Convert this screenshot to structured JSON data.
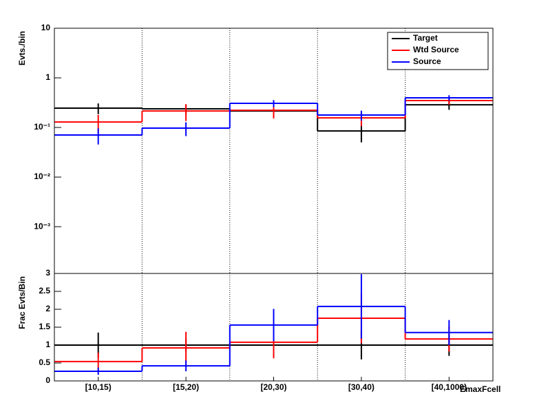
{
  "chart_data": [
    {
      "type": "step",
      "y_label": "Evts./bin",
      "log_y": true,
      "grid_x": true,
      "legend": "top-right",
      "ylim": [
        0.000114,
        10
      ],
      "yticks": [
        {
          "value": 0.001,
          "label": "10⁻³"
        },
        {
          "value": 0.01,
          "label": "10⁻²"
        },
        {
          "value": 0.1,
          "label": "10⁻¹"
        },
        1,
        10
      ],
      "series": [
        {
          "name": "Target",
          "color": "#000000",
          "values": [
            0.245,
            0.237,
            0.215,
            0.085,
            0.287
          ],
          "errors": [
            0.06,
            0.05,
            0.03,
            0.035,
            0.06
          ]
        },
        {
          "name": "Wtd Source",
          "color": "#ff0000",
          "values": [
            0.129,
            0.215,
            0.222,
            0.156,
            0.348
          ],
          "errors": [
            0.05,
            0.08,
            0.07,
            0.05,
            0.06
          ]
        },
        {
          "name": "Source",
          "color": "#0000ff",
          "values": [
            0.0704,
            0.097,
            0.306,
            0.178,
            0.396
          ],
          "errors": [
            0.025,
            0.03,
            0.05,
            0.04,
            0.05
          ]
        }
      ]
    },
    {
      "type": "step",
      "y_label": "Frac Evts/Bin",
      "x_label": "EmaxFcell",
      "grid_x": true,
      "categories": [
        "[10,15)",
        "[15,20)",
        "[20,30)",
        "[30,40)",
        "[40,1000)"
      ],
      "ylim": [
        0,
        3
      ],
      "yticks": [
        0,
        0.5,
        1,
        1.5,
        2,
        2.5,
        3
      ],
      "series": [
        {
          "color": "#000000",
          "values": [
            1,
            1,
            1,
            1,
            1
          ],
          "errors": [
            0.35,
            0.2,
            0.15,
            0.4,
            0.3
          ]
        },
        {
          "color": "#ff0000",
          "values": [
            0.54,
            0.92,
            1.08,
            1.75,
            1.17
          ],
          "errors": [
            0.25,
            0.45,
            0.45,
            0.7,
            0.35
          ]
        },
        {
          "color": "#0000ff",
          "values": [
            0.27,
            0.42,
            1.56,
            2.08,
            1.35
          ],
          "errors": [
            0.1,
            0.15,
            0.45,
            0.9,
            0.35
          ]
        }
      ]
    }
  ]
}
